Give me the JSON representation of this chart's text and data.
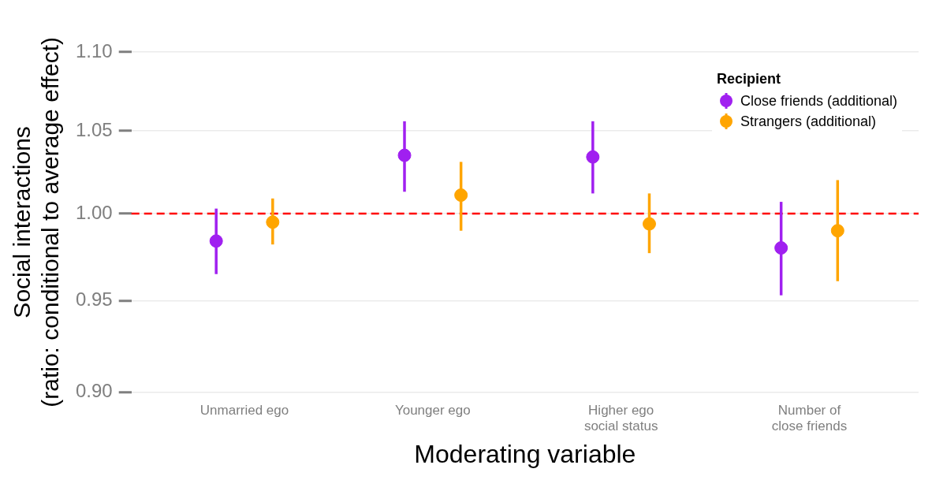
{
  "chart_data": {
    "type": "scatter",
    "xlabel": "Moderating variable",
    "ylabel": "Social interactions\n(ratio: conditional to average effect)",
    "legend_title": "Recipient",
    "categories": [
      "Unmarried ego",
      "Younger ego",
      "Higher ego social status",
      "Number of close friends"
    ],
    "series": [
      {
        "name": "Close friends (additional)",
        "color": "#a020f0",
        "values": [
          0.984,
          1.035,
          1.034,
          0.98
        ],
        "errors": [
          [
            0.965,
            1.003
          ],
          [
            1.013,
            1.056
          ],
          [
            1.012,
            1.056
          ],
          [
            0.953,
            1.007
          ]
        ]
      },
      {
        "name": "Strangers (additional)",
        "color": "#ffa500",
        "values": [
          0.995,
          1.011,
          0.994,
          0.99
        ],
        "errors": [
          [
            0.982,
            1.009
          ],
          [
            0.99,
            1.031
          ],
          [
            0.977,
            1.012
          ],
          [
            0.961,
            1.02
          ]
        ]
      }
    ],
    "log": "y",
    "ylim": [
      0.9,
      1.1
    ],
    "yticks": [
      {
        "value": 0.9,
        "label": "0.90"
      },
      {
        "value": 0.95,
        "label": "0.95"
      },
      {
        "value": 1,
        "label": "1.00"
      },
      {
        "value": 1.05,
        "label": "1.05"
      },
      {
        "value": 1.1,
        "label": "1.10"
      }
    ],
    "ref_lines": [
      {
        "axis": "y",
        "value": 1,
        "color": "#ff0000",
        "line_style": "dashed"
      }
    ],
    "grid": true,
    "legend": "top right",
    "marker": "circle"
  }
}
